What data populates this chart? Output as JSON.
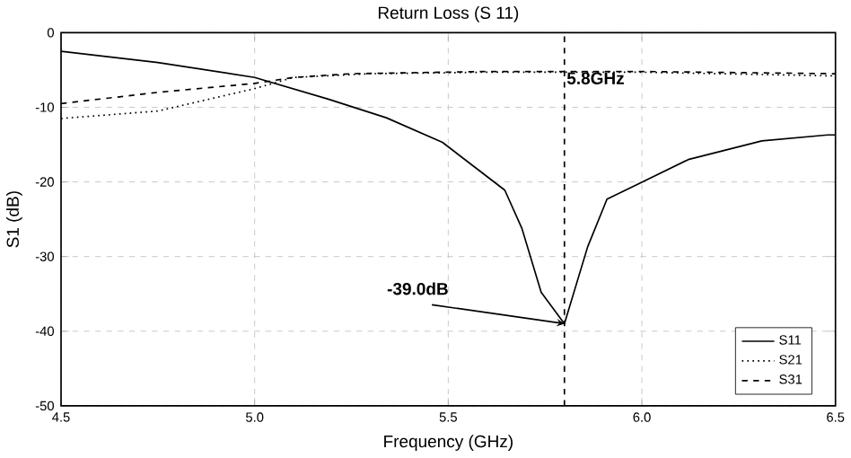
{
  "chart_data": {
    "type": "line",
    "title": "Return Loss (S 11)",
    "xlabel": "Frequency (GHz)",
    "ylabel": "S1 (dB)",
    "xlim": [
      4.5,
      6.5
    ],
    "ylim": [
      -50,
      0
    ],
    "xticks": [
      {
        "value": 4.5,
        "label": "4.5"
      },
      {
        "value": 5.0,
        "label": "5.0"
      },
      {
        "value": 5.5,
        "label": "5.5"
      },
      {
        "value": 6.0,
        "label": "6.0"
      },
      {
        "value": 6.5,
        "label": "6.5"
      }
    ],
    "yticks": [
      -50,
      -40,
      -30,
      -20,
      -10,
      0
    ],
    "grid": true,
    "legend": "bottom right",
    "marker": "none",
    "series": [
      {
        "name": "S11",
        "color": "#000000",
        "line_style": "solid",
        "x": [
          4.5,
          4.75,
          5.0,
          5.19,
          5.34,
          5.485,
          5.646,
          5.69,
          5.74,
          5.8,
          5.86,
          5.91,
          5.99,
          6.12,
          6.31,
          6.48,
          6.5
        ],
        "values": [
          -2.5,
          -4,
          -6,
          -8.9,
          -11.4,
          -14.7,
          -21.1,
          -26.2,
          -34.8,
          -39,
          -28.7,
          -22.3,
          -20.3,
          -17,
          -14.5,
          -13.7,
          -13.7
        ]
      },
      {
        "name": "S21",
        "color": "#000000",
        "line_style": "dotted",
        "x": [
          4.5,
          4.75,
          5.0,
          5.1,
          5.3,
          5.6,
          6.0,
          6.5
        ],
        "values": [
          -11.5,
          -10.5,
          -7.5,
          -6,
          -5.5,
          -5.3,
          -5.3,
          -5.8
        ]
      },
      {
        "name": "S31",
        "color": "#000000",
        "line_style": "dashed",
        "x": [
          4.5,
          4.75,
          5.0,
          5.1,
          5.25,
          5.6,
          6.0,
          6.5
        ],
        "values": [
          -9.5,
          -8,
          -6.8,
          -6,
          -5.5,
          -5.2,
          -5.2,
          -5.5
        ]
      }
    ],
    "ref_lines": [
      {
        "axis": "x",
        "value": 5.8,
        "label": "5.8GHz",
        "line_style": "dashed",
        "color": "#000000"
      }
    ],
    "annotations": [
      {
        "text": "-39.0dB",
        "x": 5.8,
        "y": -39
      }
    ]
  }
}
